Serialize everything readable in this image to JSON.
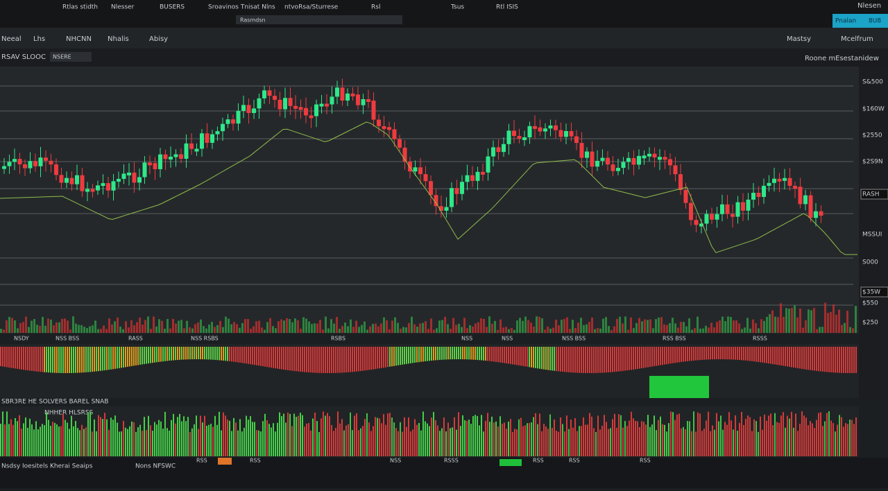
{
  "header": {
    "menu": [
      "Rtlas stidth",
      "Nlesser",
      "BUSERS",
      "Sroavinos Tnisat Nlns",
      "ntvoRsa/Sturrese",
      "Rsl",
      "Tsus",
      "Rtl ISIS"
    ],
    "search": "Rasmdsn",
    "account": "Nlesen",
    "badge": "Pnalan",
    "badge_value": "8U8"
  },
  "toolbar": {
    "tabs": [
      "Neeal",
      "Lhs",
      "NHCNN",
      "Nhalis",
      "Abisy"
    ],
    "right": [
      "Mastsy",
      "Mcelfrum"
    ]
  },
  "chart": {
    "symbol": "RSAV SLOOC",
    "symbol_tag": "NSERE",
    "range_note": "Roone mEsestanidew",
    "price_labels": [
      "S&500",
      "$160W",
      "$2550",
      "$2S9N",
      "RASH",
      "MSSUI",
      "S000",
      "$35W",
      "$550",
      "$250"
    ],
    "time_labels": [
      "NSDY",
      "NSS BSS",
      "RASS",
      "NSS RSBS",
      "RSBS",
      "NSS",
      "NSS",
      "NSS BSS",
      "RSS BSS",
      "RSSS"
    ]
  },
  "panels": {
    "indicator_title": "SBR3RE HE SOLVERS BAREL SNAB",
    "indicator_sub": "NHHER HLSRSS"
  },
  "footer": {
    "left": "Nsdsy Ioesitels Kherai Seaips",
    "mid": "Nons NFSWC",
    "tags": [
      "RSS",
      "RSS",
      "NSS",
      "RSSS",
      "RSS",
      "RSS",
      "RSS"
    ]
  }
}
